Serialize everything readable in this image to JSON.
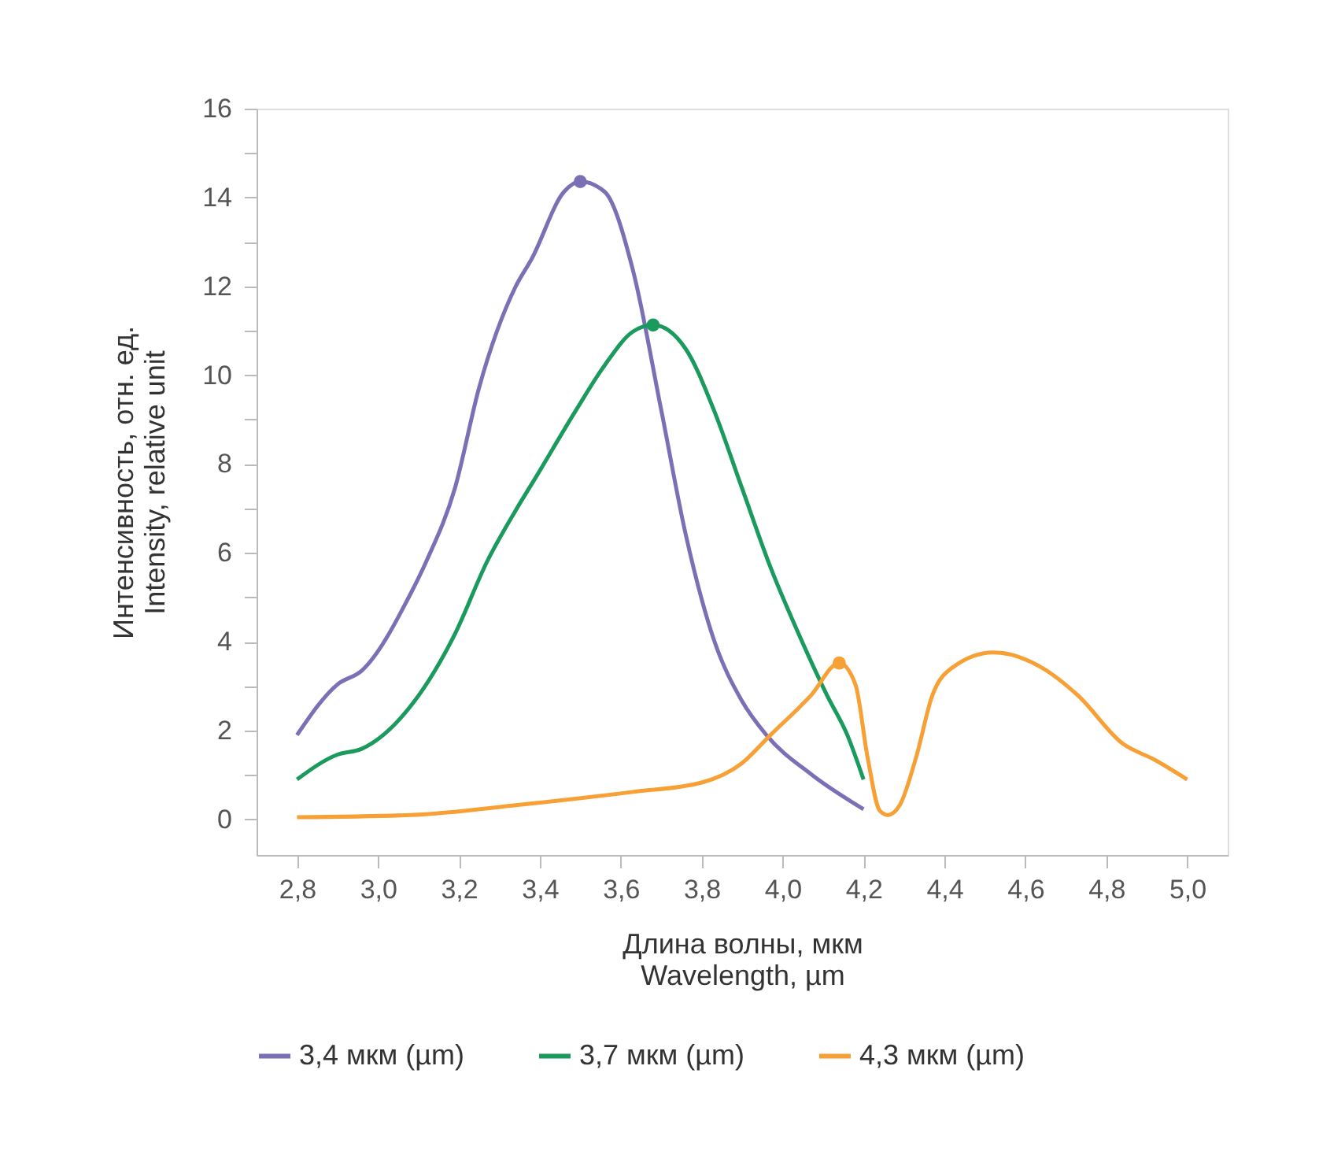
{
  "chart_data": {
    "type": "line",
    "xlabel": "Длина волны, мкм\nWavelength, µm",
    "ylabel": "Интенсивность, отн. ед.\nIntensity, relative unit",
    "xlim": [
      2.7,
      5.1
    ],
    "ylim": [
      -0.8,
      16
    ],
    "xticks": [
      {
        "value": 2.8,
        "label": "2,8"
      },
      {
        "value": 3.0,
        "label": "3,0"
      },
      {
        "value": 3.2,
        "label": "3,2"
      },
      {
        "value": 3.4,
        "label": "3,4"
      },
      {
        "value": 3.6,
        "label": "3,6"
      },
      {
        "value": 3.8,
        "label": "3,8"
      },
      {
        "value": 4.0,
        "label": "4,0"
      },
      {
        "value": 4.2,
        "label": "4,2"
      },
      {
        "value": 4.4,
        "label": "4,4"
      },
      {
        "value": 4.6,
        "label": "4,6"
      },
      {
        "value": 4.8,
        "label": "4,8"
      },
      {
        "value": 5.0,
        "label": "5,0"
      }
    ],
    "yticks": [
      0,
      {
        "value": 1,
        "label": null
      },
      2,
      {
        "value": 3,
        "label": null
      },
      4,
      {
        "value": 5,
        "label": null
      },
      6,
      {
        "value": 7,
        "label": null
      },
      8,
      {
        "value": 9,
        "label": null
      },
      10,
      {
        "value": 11,
        "label": null
      },
      12,
      {
        "value": 13,
        "label": null
      },
      14,
      {
        "value": 15,
        "label": null
      },
      16
    ],
    "grid": false,
    "legend": "bottom",
    "line_style": "solid",
    "series": [
      {
        "name": "3,4 мкм (µm)",
        "color": "#7b6fb5",
        "x": [
          2.8,
          2.9,
          2.96,
          3.08,
          3.12,
          3.19,
          3.25,
          3.34,
          3.38,
          3.46,
          3.5,
          3.56,
          3.63,
          3.7,
          3.76,
          3.83,
          3.9,
          3.96,
          4.07,
          4.2
        ],
        "values": [
          1.9,
          3.04,
          3.35,
          5.07,
          5.82,
          7.45,
          9.72,
          11.99,
          12.62,
          14.13,
          14.36,
          14.13,
          12.37,
          9.22,
          6.44,
          4.05,
          2.66,
          1.9,
          1.02,
          0.23
        ]
      },
      {
        "name": "3,7 мкм (µm)",
        "color": "#1a9a5c",
        "x": [
          2.8,
          2.9,
          2.96,
          3.09,
          3.19,
          3.27,
          3.34,
          3.39,
          3.49,
          3.56,
          3.63,
          3.68,
          3.76,
          3.83,
          3.9,
          3.97,
          4.04,
          4.11,
          4.16,
          4.2
        ],
        "values": [
          0.9,
          1.46,
          1.59,
          2.66,
          4.17,
          5.81,
          6.95,
          7.7,
          9.22,
          10.22,
          10.98,
          11.13,
          10.6,
          9.22,
          7.45,
          5.68,
          4.17,
          2.79,
          1.9,
          0.9
        ]
      },
      {
        "name": "4,3 мкм (µm)",
        "color": "#f7a035",
        "x": [
          2.8,
          3.08,
          3.35,
          3.63,
          3.8,
          3.9,
          3.97,
          4.07,
          4.14,
          4.18,
          4.21,
          4.24,
          4.26,
          4.29,
          4.33,
          4.37,
          4.42,
          4.52,
          4.64,
          4.73,
          4.84,
          4.92,
          5.0
        ],
        "values": [
          0.05,
          0.1,
          0.33,
          0.62,
          0.83,
          1.27,
          1.9,
          2.79,
          3.52,
          3.04,
          1.4,
          0.2,
          0.1,
          0.33,
          1.4,
          2.79,
          3.42,
          3.76,
          3.42,
          2.79,
          1.71,
          1.34,
          0.9
        ]
      },
      {
        "type": "scatter",
        "color": "#7b6fb5",
        "x": [
          3.5
        ],
        "values": [
          14.36
        ]
      },
      {
        "type": "scatter",
        "color": "#1a9a5c",
        "x": [
          3.68
        ],
        "values": [
          11.13
        ]
      },
      {
        "type": "scatter",
        "color": "#f7a035",
        "x": [
          4.14
        ],
        "values": [
          3.52
        ]
      }
    ]
  }
}
